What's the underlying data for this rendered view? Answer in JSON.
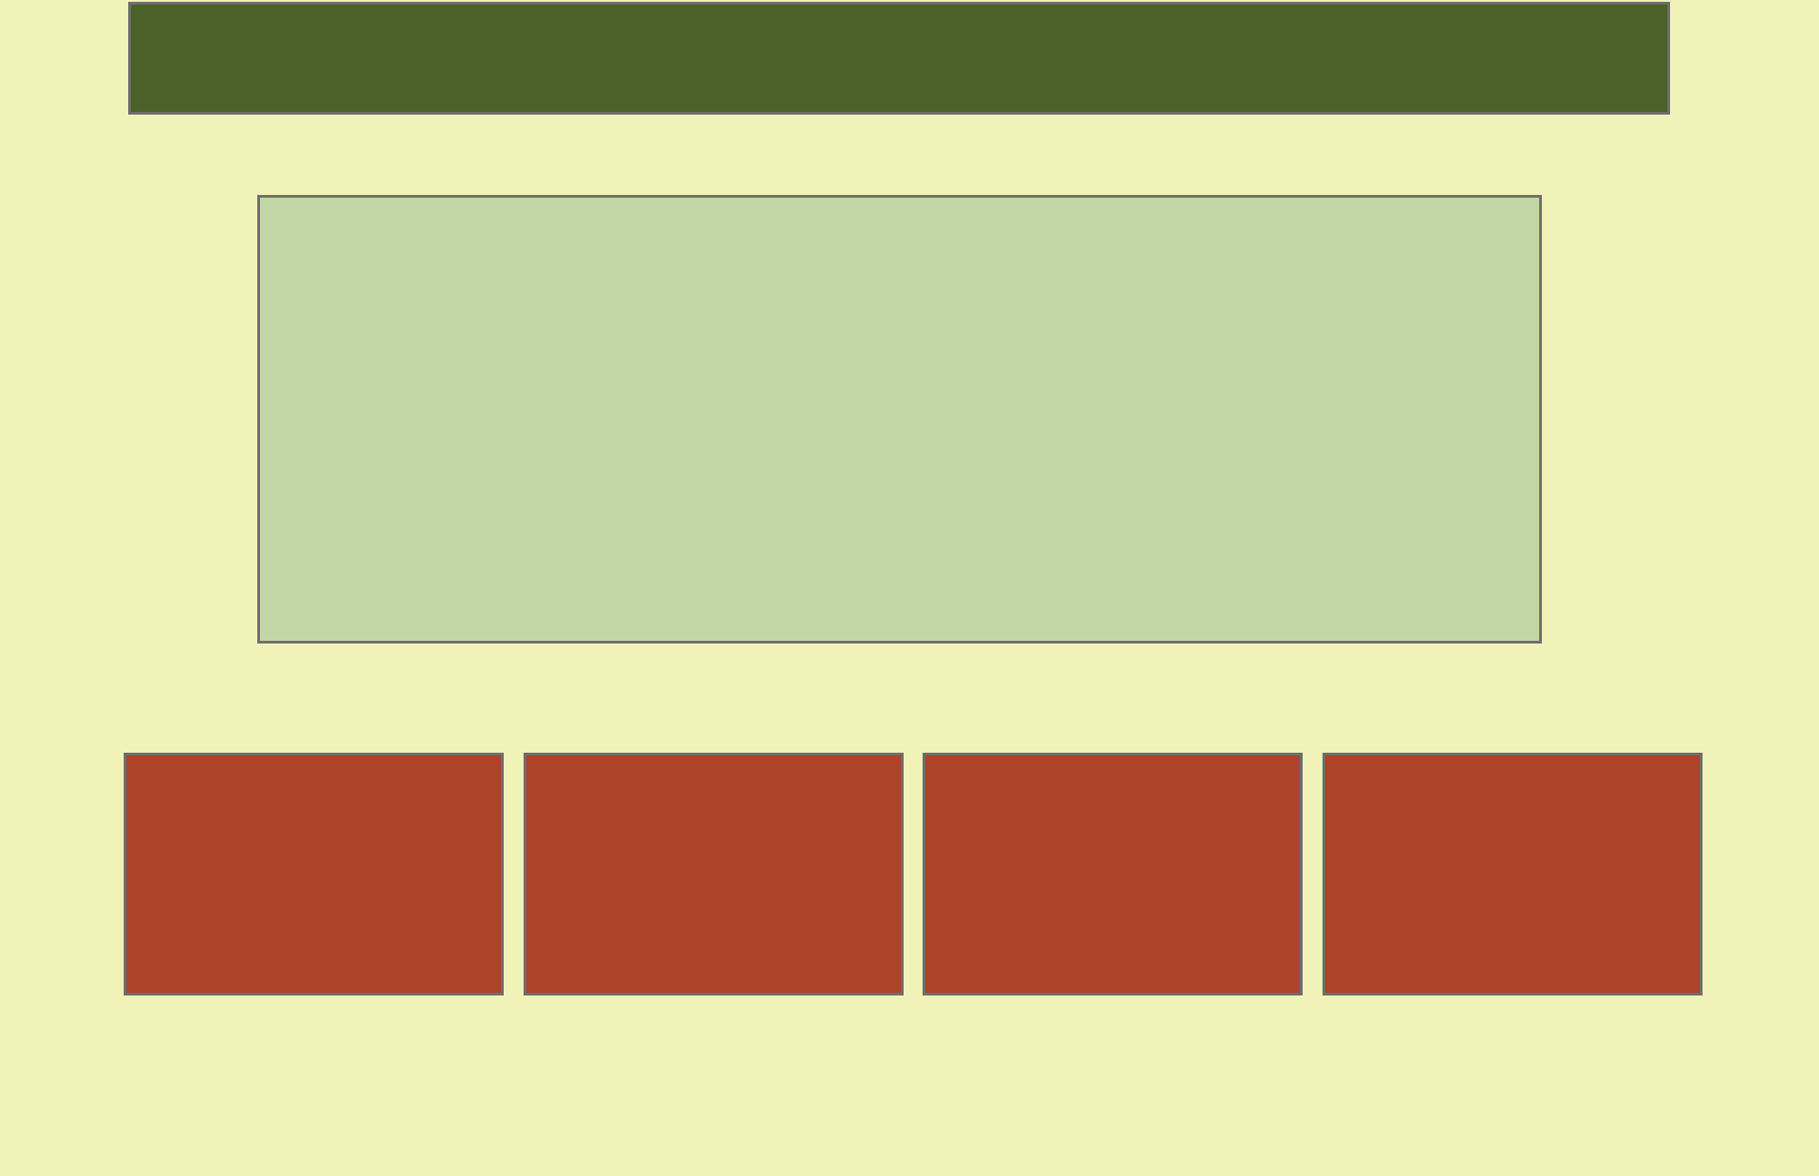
{
  "colors": {
    "background": "#f1f2b8",
    "banner": "#4a6128",
    "panel": "#c3d6a6",
    "card": "#ad4328",
    "border": "#6e6e6e"
  },
  "cards": [
    {},
    {},
    {},
    {}
  ]
}
